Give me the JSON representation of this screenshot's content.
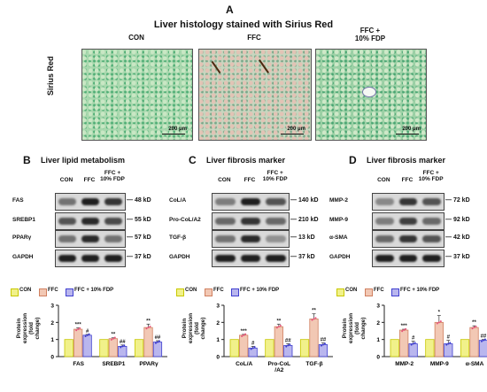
{
  "panel_a": {
    "letter": "A",
    "title": "Liver histology stained with Sirius Red",
    "row_label": "Sirius Red",
    "groups": [
      "CON",
      "FFC",
      "FFC +\n10% FDP"
    ],
    "scale_bar": "200 μm"
  },
  "panel_b": {
    "letter": "B",
    "title": "Liver lipid metabolism",
    "lanes": [
      "CON",
      "FFC",
      "FFC +\n10% FDP"
    ],
    "bands": [
      {
        "name": "FAS",
        "kd": "48 kD"
      },
      {
        "name": "SREBP1",
        "kd": "55 kD"
      },
      {
        "name": "PPARγ",
        "kd": "57 kD"
      },
      {
        "name": "GAPDH",
        "kd": "37 kD"
      }
    ]
  },
  "panel_c": {
    "letter": "C",
    "title": "Liver fibrosis marker",
    "lanes": [
      "CON",
      "FFC",
      "FFC +\n10% FDP"
    ],
    "bands": [
      {
        "name": "CoL/A",
        "kd": "140 kD"
      },
      {
        "name": "Pro-CoL/A2",
        "kd": "210 kD"
      },
      {
        "name": "TGF-β",
        "kd": "13 kD"
      },
      {
        "name": "GAPDH",
        "kd": "37 kD"
      }
    ]
  },
  "panel_d": {
    "letter": "D",
    "title": "Liver fibrosis marker",
    "lanes": [
      "CON",
      "FFC",
      "FFC +\n10% FDP"
    ],
    "bands": [
      {
        "name": "MMP-2",
        "kd": "72 kD"
      },
      {
        "name": "MMP-9",
        "kd": "92 kD"
      },
      {
        "name": "α-SMA",
        "kd": "42 kD"
      },
      {
        "name": "GAPDH",
        "kd": "37 kD"
      }
    ]
  },
  "legend": [
    "CON",
    "FFC",
    "FFC + 10% FDP"
  ],
  "colors": {
    "con": "#f1f18a",
    "ffc": "#f2c8b4",
    "fdp": "#b9b6ee",
    "con_edge": "#c8c800",
    "ffc_edge": "#d08060",
    "fdp_edge": "#4040d0",
    "dot_ffc": "#e8507a",
    "dot_fdp": "#3a3acc"
  },
  "chart_data": [
    {
      "type": "bar",
      "ylabel": "Protein\nexpression\n(fold change)",
      "ylim": [
        0,
        3
      ],
      "yticks": [
        "0",
        "1",
        "2",
        "3"
      ],
      "categories": [
        "FAS",
        "SREBP1",
        "PPARγ"
      ],
      "series": [
        {
          "name": "CON",
          "values": [
            1.0,
            1.0,
            1.0
          ],
          "errors": [
            0,
            0,
            0
          ]
        },
        {
          "name": "FFC",
          "values": [
            1.6,
            1.05,
            1.7
          ],
          "errors": [
            0.08,
            0.05,
            0.2
          ]
        },
        {
          "name": "FFC + 10% FDP",
          "values": [
            1.25,
            0.6,
            0.85
          ],
          "errors": [
            0.05,
            0.08,
            0.08
          ]
        }
      ],
      "stars": [
        [
          "",
          "***",
          "#"
        ],
        [
          "",
          "**",
          "##"
        ],
        [
          "",
          "**",
          "##"
        ]
      ]
    },
    {
      "type": "bar",
      "ylabel": "Protein\nexpression\n(fold change)",
      "ylim": [
        0,
        3
      ],
      "yticks": [
        "0",
        "1",
        "2",
        "3"
      ],
      "categories": [
        "CoL/A",
        "Pro-CoL\n/A2",
        "TGF-β"
      ],
      "series": [
        {
          "name": "CON",
          "values": [
            1.0,
            1.0,
            1.0
          ],
          "errors": [
            0,
            0,
            0
          ]
        },
        {
          "name": "FFC",
          "values": [
            1.25,
            1.75,
            2.2
          ],
          "errors": [
            0.05,
            0.15,
            0.3
          ]
        },
        {
          "name": "FFC + 10% FDP",
          "values": [
            0.5,
            0.65,
            0.7
          ],
          "errors": [
            0.1,
            0.1,
            0.1
          ]
        }
      ],
      "stars": [
        [
          "",
          "***",
          "#"
        ],
        [
          "",
          "**",
          "##"
        ],
        [
          "",
          "**",
          "##"
        ]
      ]
    },
    {
      "type": "bar",
      "ylabel": "Protein\nexpression\n(fold change)",
      "ylim": [
        0,
        3
      ],
      "yticks": [
        "0",
        "1",
        "2",
        "3"
      ],
      "categories": [
        "MMP-2",
        "MMP-9",
        "α-SMA"
      ],
      "series": [
        {
          "name": "CON",
          "values": [
            1.0,
            1.0,
            1.0
          ],
          "errors": [
            0,
            0,
            0
          ]
        },
        {
          "name": "FFC",
          "values": [
            1.55,
            2.0,
            1.7
          ],
          "errors": [
            0.05,
            0.4,
            0.1
          ]
        },
        {
          "name": "FFC + 10% FDP",
          "values": [
            0.75,
            0.75,
            0.95
          ],
          "errors": [
            0.15,
            0.2,
            0.05
          ]
        }
      ],
      "stars": [
        [
          "",
          "***",
          "#"
        ],
        [
          "",
          "*",
          "#"
        ],
        [
          "",
          "**",
          "##"
        ]
      ]
    }
  ]
}
